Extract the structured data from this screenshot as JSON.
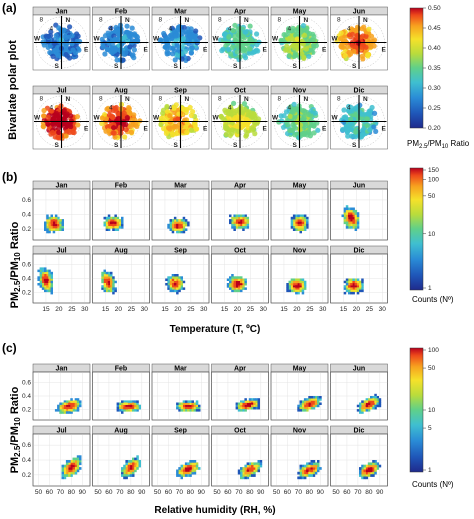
{
  "chart_data": [
    {
      "label": "(a)",
      "type": "polar",
      "ylabel": "Bivarlate polar plot",
      "panels": [
        "Jan",
        "Feb",
        "Mar",
        "Apr",
        "May",
        "Jun",
        "Jul",
        "Aug",
        "Sep",
        "Oct",
        "Nov",
        "Dic"
      ],
      "polar_rings": [
        "4",
        "8"
      ],
      "compass": [
        "N",
        "E",
        "S",
        "W"
      ],
      "colorbar": {
        "title": "PM2.5/PM10 Ratio",
        "ticks": [
          "0.50",
          "0.45",
          "0.40",
          "0.35",
          "0.30",
          "0.25",
          "0.20"
        ],
        "range": [
          0.2,
          0.5
        ]
      }
    },
    {
      "label": "(b)",
      "type": "heatmap",
      "ylabel": "PM2.5/PM10 Ratio",
      "xlabel": "Temperature (T, ºC)",
      "panels": [
        "Jan",
        "Feb",
        "Mar",
        "Apr",
        "May",
        "Jun",
        "Jul",
        "Aug",
        "Sep",
        "Oct",
        "Nov",
        "Dic"
      ],
      "x_ticks": [
        "15",
        "20",
        "25",
        "30"
      ],
      "y_ticks": [
        "0.2",
        "0.4",
        "0.6"
      ],
      "ylim": [
        0.05,
        0.75
      ],
      "colorbar": {
        "title": "Counts (Nº)",
        "ticks": [
          "150",
          "100",
          "50",
          "10",
          "1"
        ],
        "scale": "log"
      }
    },
    {
      "label": "(c)",
      "type": "heatmap",
      "ylabel": "PM2.5/PM10 Ratio",
      "xlabel": "Relative humidity (RH, %)",
      "panels": [
        "Jan",
        "Feb",
        "Mar",
        "Apr",
        "May",
        "Jun",
        "Jul",
        "Aug",
        "Sep",
        "Oct",
        "Nov",
        "Dic"
      ],
      "x_ticks": [
        "50",
        "60",
        "70",
        "80",
        "90"
      ],
      "y_ticks": [
        "0.2",
        "0.4",
        "0.6"
      ],
      "ylim": [
        0.05,
        0.75
      ],
      "colorbar": {
        "title": "Counts (Nº)",
        "ticks": [
          "100",
          "50",
          "10",
          "5",
          "1"
        ],
        "scale": "log"
      }
    }
  ],
  "colors": {
    "ramp": [
      "#1f2a8c",
      "#1f56b8",
      "#2a8bd6",
      "#3fbfd0",
      "#5fd08a",
      "#b9dc3c",
      "#f5e12a",
      "#f7a21f",
      "#ee4a1b",
      "#b8001c"
    ]
  }
}
